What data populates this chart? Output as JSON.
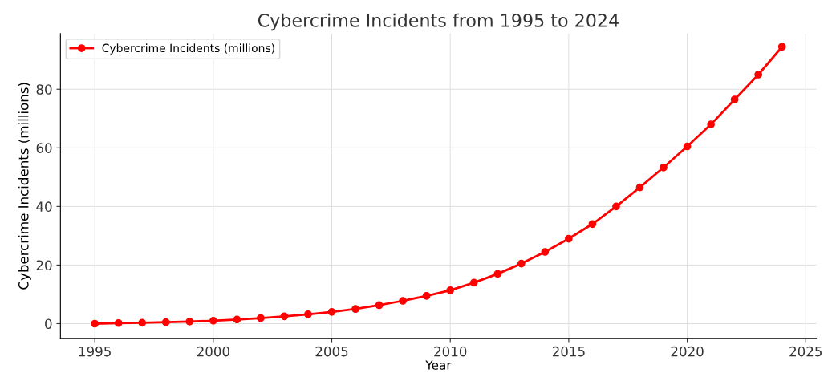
{
  "chart_data": {
    "type": "line",
    "title": "Cybercrime Incidents from 1995 to 2024",
    "xlabel": "Year",
    "ylabel": "Cybercrime Incidents (millions)",
    "x": [
      1995,
      1996,
      1997,
      1998,
      1999,
      2000,
      2001,
      2002,
      2003,
      2004,
      2005,
      2006,
      2007,
      2008,
      2009,
      2010,
      2011,
      2012,
      2013,
      2014,
      2015,
      2016,
      2017,
      2018,
      2019,
      2020,
      2021,
      2022,
      2023,
      2024
    ],
    "series": [
      {
        "name": "Cybercrime Incidents (millions)",
        "color": "#ff0000",
        "values": [
          0,
          0.2,
          0.3,
          0.5,
          0.7,
          1.0,
          1.4,
          1.9,
          2.5,
          3.2,
          4.0,
          5.0,
          6.3,
          7.8,
          9.5,
          11.4,
          14.0,
          17.0,
          20.5,
          24.5,
          29.0,
          34.0,
          40.0,
          46.5,
          53.3,
          60.5,
          68.0,
          76.5,
          85.0,
          94.5
        ]
      }
    ],
    "xlim": [
      1993.55,
      2025.45
    ],
    "xticks": [
      1995,
      2000,
      2005,
      2010,
      2015,
      2020,
      2025
    ],
    "ylim": [
      -5,
      99
    ],
    "yticks": [
      0,
      20,
      40,
      60,
      80
    ],
    "grid": true,
    "legend": "top left",
    "marker": "circle",
    "line_style": "solid"
  }
}
